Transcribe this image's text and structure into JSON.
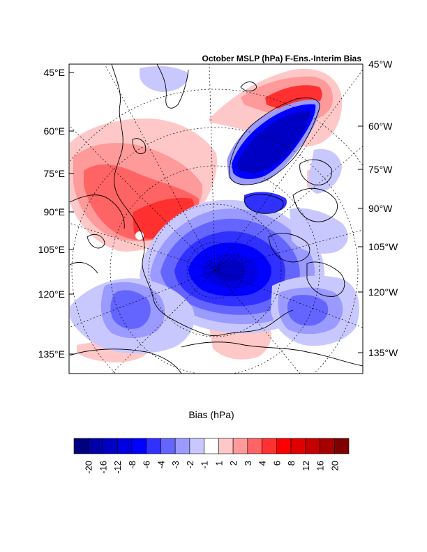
{
  "chart_data": {
    "type": "heatmap",
    "title": "October MSLP (hPa) F-Ens.-Interim Bias",
    "left_axis_labels": [
      "45°E",
      "60°E",
      "75°E",
      "90°E",
      "105°E",
      "120°E",
      "135°E"
    ],
    "right_axis_labels": [
      "45°W",
      "60°W",
      "75°W",
      "90°W",
      "105°W",
      "120°W",
      "135°W"
    ],
    "colorbar": {
      "title": "Bias (hPa)",
      "levels": [
        "-20",
        "-16",
        "-12",
        "-8",
        "-6",
        "-4",
        "-3",
        "-2",
        "-1",
        "1",
        "2",
        "3",
        "4",
        "6",
        "8",
        "12",
        "16",
        "20"
      ],
      "colors": [
        "#00007f",
        "#0000a6",
        "#0000c4",
        "#0000e0",
        "#0000ff",
        "#3030ff",
        "#6464ff",
        "#9a9aff",
        "#c8c8ff",
        "#ffffff",
        "#ffc8c8",
        "#ff9a9a",
        "#ff6464",
        "#ff3030",
        "#ff0000",
        "#e00000",
        "#c40000",
        "#a60000",
        "#7f0000"
      ]
    }
  }
}
